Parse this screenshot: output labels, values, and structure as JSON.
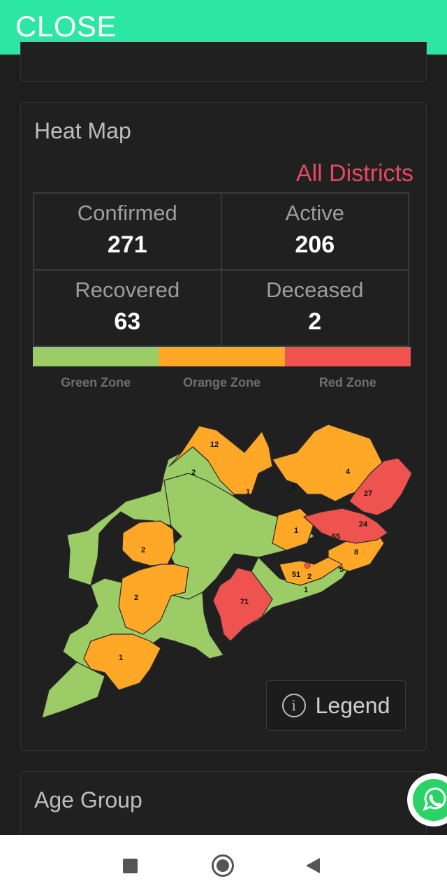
{
  "header": {
    "close_label": "CLOSE"
  },
  "heat_map": {
    "title": "Heat Map",
    "district_filter": "All Districts",
    "stats": {
      "confirmed": {
        "label": "Confirmed",
        "value": "271"
      },
      "active": {
        "label": "Active",
        "value": "206"
      },
      "recovered": {
        "label": "Recovered",
        "value": "63"
      },
      "deceased": {
        "label": "Deceased",
        "value": "2"
      }
    },
    "zones": [
      {
        "label": "Green Zone",
        "color": "#9ccc65"
      },
      {
        "label": "Orange Zone",
        "color": "#ffa726"
      },
      {
        "label": "Red Zone",
        "color": "#ef5350"
      }
    ],
    "district_counts": [
      "12",
      "2",
      "1",
      "2",
      "4",
      "27",
      "24",
      "1",
      "55",
      "8",
      "2",
      "51",
      "5",
      "1",
      "2",
      "2",
      "71",
      "1"
    ],
    "legend_label": "Legend"
  },
  "age_group": {
    "title": "Age Group"
  }
}
